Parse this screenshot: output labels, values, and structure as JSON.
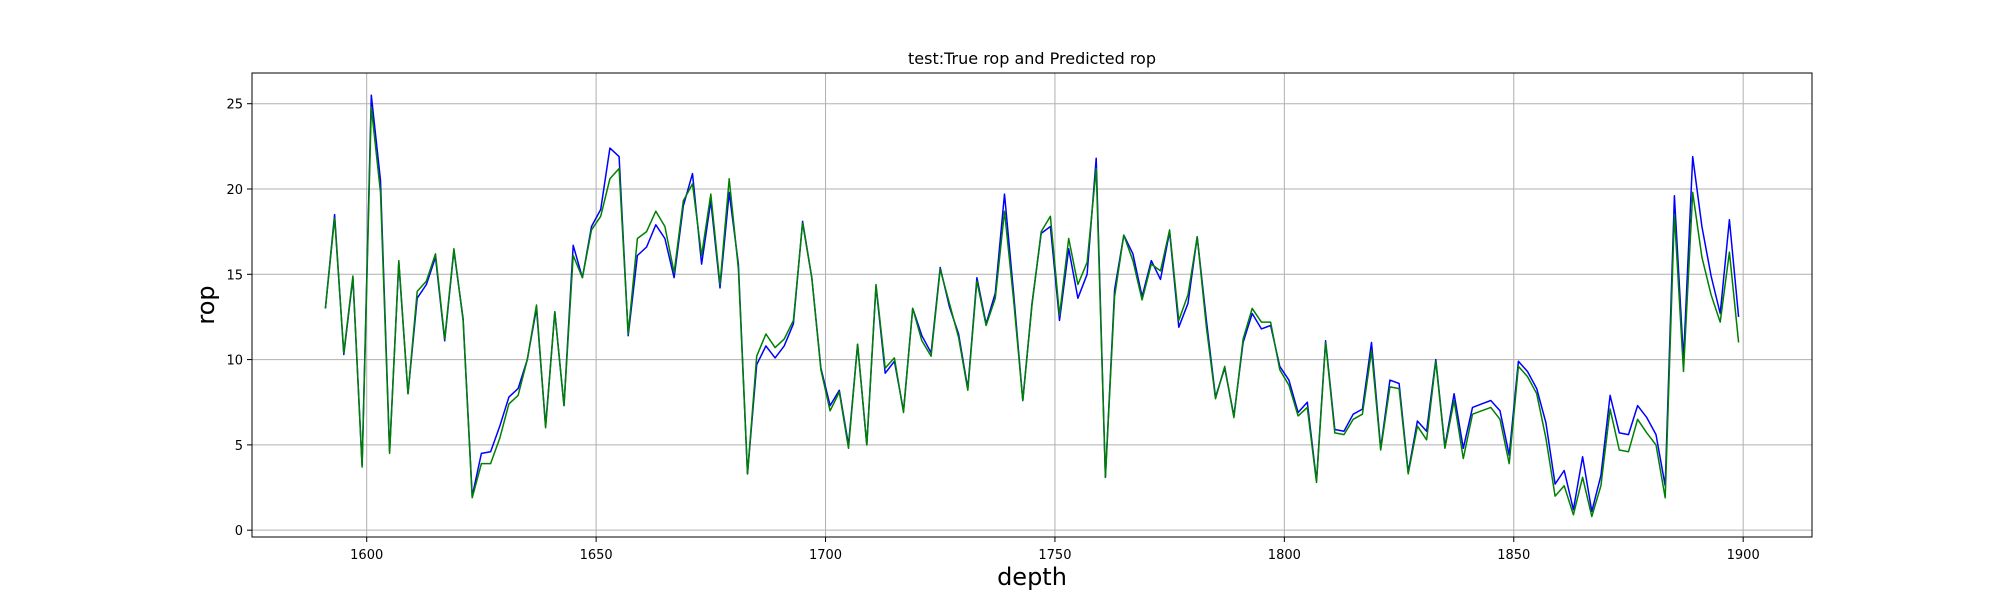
{
  "chart_data": {
    "type": "line",
    "title": "test:True rop and Predicted rop",
    "xlabel": "depth",
    "ylabel": "rop",
    "xlim": [
      1575,
      1915
    ],
    "ylim": [
      -0.4,
      26.8
    ],
    "xticks": [
      1600,
      1650,
      1700,
      1750,
      1800,
      1850,
      1900
    ],
    "yticks": [
      0,
      5,
      10,
      15,
      20,
      25
    ],
    "grid": true,
    "legend": "none",
    "series": [
      {
        "color": "#0000ff",
        "x": [
          1591,
          1593,
          1595,
          1597,
          1599,
          1601,
          1603,
          1605,
          1607,
          1609,
          1611,
          1613,
          1615,
          1617,
          1619,
          1621,
          1623,
          1625,
          1627,
          1629,
          1631,
          1633,
          1635,
          1637,
          1639,
          1641,
          1643,
          1645,
          1647,
          1649,
          1651,
          1653,
          1655,
          1657,
          1659,
          1661,
          1663,
          1665,
          1667,
          1669,
          1671,
          1673,
          1675,
          1677,
          1679,
          1681,
          1683,
          1685,
          1687,
          1689,
          1691,
          1693,
          1695,
          1697,
          1699,
          1701,
          1703,
          1705,
          1707,
          1709,
          1711,
          1713,
          1715,
          1717,
          1719,
          1721,
          1723,
          1725,
          1727,
          1729,
          1731,
          1733,
          1735,
          1737,
          1739,
          1741,
          1743,
          1745,
          1747,
          1749,
          1751,
          1753,
          1755,
          1757,
          1759,
          1761,
          1763,
          1765,
          1767,
          1769,
          1771,
          1773,
          1775,
          1777,
          1779,
          1781,
          1783,
          1785,
          1787,
          1789,
          1791,
          1793,
          1795,
          1797,
          1799,
          1801,
          1803,
          1805,
          1807,
          1809,
          1811,
          1813,
          1815,
          1817,
          1819,
          1821,
          1823,
          1825,
          1827,
          1829,
          1831,
          1833,
          1835,
          1837,
          1839,
          1841,
          1843,
          1845,
          1847,
          1849,
          1851,
          1853,
          1855,
          1857,
          1859,
          1861,
          1863,
          1865,
          1867,
          1869,
          1871,
          1873,
          1875,
          1877,
          1879,
          1881,
          1883,
          1885,
          1887,
          1889,
          1891,
          1893,
          1895,
          1897,
          1899
        ],
        "y": [
          13.0,
          18.5,
          10.3,
          14.8,
          3.8,
          25.5,
          20.5,
          4.6,
          15.7,
          8.0,
          13.6,
          14.4,
          16.0,
          11.1,
          16.4,
          12.4,
          2.0,
          4.5,
          4.6,
          6.1,
          7.8,
          8.3,
          10.0,
          13.0,
          6.1,
          12.8,
          7.3,
          16.7,
          14.8,
          17.8,
          18.8,
          22.4,
          21.9,
          11.4,
          16.1,
          16.6,
          17.9,
          17.1,
          14.8,
          19.0,
          20.9,
          15.6,
          19.3,
          14.2,
          19.8,
          15.6,
          3.3,
          9.7,
          10.8,
          10.1,
          10.8,
          12.1,
          18.1,
          14.8,
          9.5,
          7.3,
          8.2,
          5.0,
          10.9,
          5.0,
          14.3,
          9.2,
          9.9,
          7.0,
          13.0,
          11.4,
          10.4,
          15.4,
          13.1,
          11.5,
          8.3,
          14.8,
          12.1,
          13.9,
          19.7,
          13.9,
          7.6,
          13.3,
          17.4,
          17.8,
          12.3,
          16.5,
          13.6,
          15.0,
          21.8,
          3.1,
          14.1,
          17.3,
          16.2,
          13.7,
          15.8,
          14.7,
          17.5,
          11.9,
          13.3,
          17.2,
          12.3,
          7.8,
          9.5,
          6.7,
          11.0,
          12.7,
          11.8,
          12.0,
          9.6,
          8.8,
          6.9,
          7.5,
          2.9,
          11.1,
          5.9,
          5.8,
          6.8,
          7.1,
          11.0,
          4.8,
          8.8,
          8.6,
          3.4,
          6.4,
          5.8,
          10.0,
          4.9,
          8.0,
          4.8,
          7.2,
          7.4,
          7.6,
          7.0,
          4.4,
          9.9,
          9.3,
          8.3,
          6.3,
          2.7,
          3.5,
          1.2,
          4.3,
          1.1,
          3.2,
          7.9,
          5.7,
          5.6,
          7.3,
          6.6,
          5.6,
          2.6,
          19.6,
          10.0,
          21.9,
          17.8,
          14.9,
          12.7,
          18.2,
          12.5
        ]
      },
      {
        "color": "#008000",
        "x": [
          1591,
          1593,
          1595,
          1597,
          1599,
          1601,
          1603,
          1605,
          1607,
          1609,
          1611,
          1613,
          1615,
          1617,
          1619,
          1621,
          1623,
          1625,
          1627,
          1629,
          1631,
          1633,
          1635,
          1637,
          1639,
          1641,
          1643,
          1645,
          1647,
          1649,
          1651,
          1653,
          1655,
          1657,
          1659,
          1661,
          1663,
          1665,
          1667,
          1669,
          1671,
          1673,
          1675,
          1677,
          1679,
          1681,
          1683,
          1685,
          1687,
          1689,
          1691,
          1693,
          1695,
          1697,
          1699,
          1701,
          1703,
          1705,
          1707,
          1709,
          1711,
          1713,
          1715,
          1717,
          1719,
          1721,
          1723,
          1725,
          1727,
          1729,
          1731,
          1733,
          1735,
          1737,
          1739,
          1741,
          1743,
          1745,
          1747,
          1749,
          1751,
          1753,
          1755,
          1757,
          1759,
          1761,
          1763,
          1765,
          1767,
          1769,
          1771,
          1773,
          1775,
          1777,
          1779,
          1781,
          1783,
          1785,
          1787,
          1789,
          1791,
          1793,
          1795,
          1797,
          1799,
          1801,
          1803,
          1805,
          1807,
          1809,
          1811,
          1813,
          1815,
          1817,
          1819,
          1821,
          1823,
          1825,
          1827,
          1829,
          1831,
          1833,
          1835,
          1837,
          1839,
          1841,
          1843,
          1845,
          1847,
          1849,
          1851,
          1853,
          1855,
          1857,
          1859,
          1861,
          1863,
          1865,
          1867,
          1869,
          1871,
          1873,
          1875,
          1877,
          1879,
          1881,
          1883,
          1885,
          1887,
          1889,
          1891,
          1893,
          1895,
          1897,
          1899
        ],
        "y": [
          13.0,
          18.3,
          10.4,
          14.9,
          3.7,
          24.8,
          19.8,
          4.5,
          15.8,
          8.0,
          14.0,
          14.6,
          16.2,
          11.2,
          16.5,
          12.3,
          1.9,
          3.9,
          3.9,
          5.4,
          7.4,
          7.9,
          10.0,
          13.2,
          6.0,
          12.8,
          7.3,
          16.1,
          14.8,
          17.6,
          18.4,
          20.6,
          21.2,
          11.5,
          17.1,
          17.5,
          18.7,
          17.8,
          15.1,
          19.3,
          20.3,
          16.1,
          19.7,
          14.4,
          20.6,
          15.3,
          3.3,
          10.2,
          11.5,
          10.7,
          11.2,
          12.3,
          18.0,
          14.8,
          9.4,
          7.0,
          8.1,
          4.8,
          10.9,
          5.0,
          14.4,
          9.5,
          10.1,
          6.9,
          13.0,
          11.1,
          10.2,
          15.3,
          13.3,
          11.3,
          8.2,
          14.6,
          12.0,
          13.6,
          18.7,
          13.5,
          7.6,
          13.2,
          17.5,
          18.4,
          12.6,
          17.1,
          14.4,
          15.7,
          21.2,
          3.1,
          13.7,
          17.3,
          15.8,
          13.5,
          15.6,
          15.2,
          17.6,
          12.3,
          13.8,
          17.2,
          11.9,
          7.7,
          9.6,
          6.6,
          11.2,
          13.0,
          12.2,
          12.2,
          9.4,
          8.5,
          6.7,
          7.2,
          2.8,
          11.0,
          5.7,
          5.6,
          6.5,
          6.8,
          10.5,
          4.7,
          8.4,
          8.3,
          3.3,
          6.1,
          5.3,
          9.9,
          4.8,
          7.6,
          4.2,
          6.8,
          7.0,
          7.2,
          6.5,
          3.9,
          9.6,
          9.0,
          8.0,
          5.4,
          2.0,
          2.6,
          0.9,
          3.1,
          0.8,
          2.6,
          7.1,
          4.7,
          4.6,
          6.5,
          5.7,
          5.0,
          1.9,
          18.5,
          9.3,
          19.8,
          16.0,
          13.8,
          12.2,
          16.3,
          11.0
        ]
      }
    ]
  }
}
